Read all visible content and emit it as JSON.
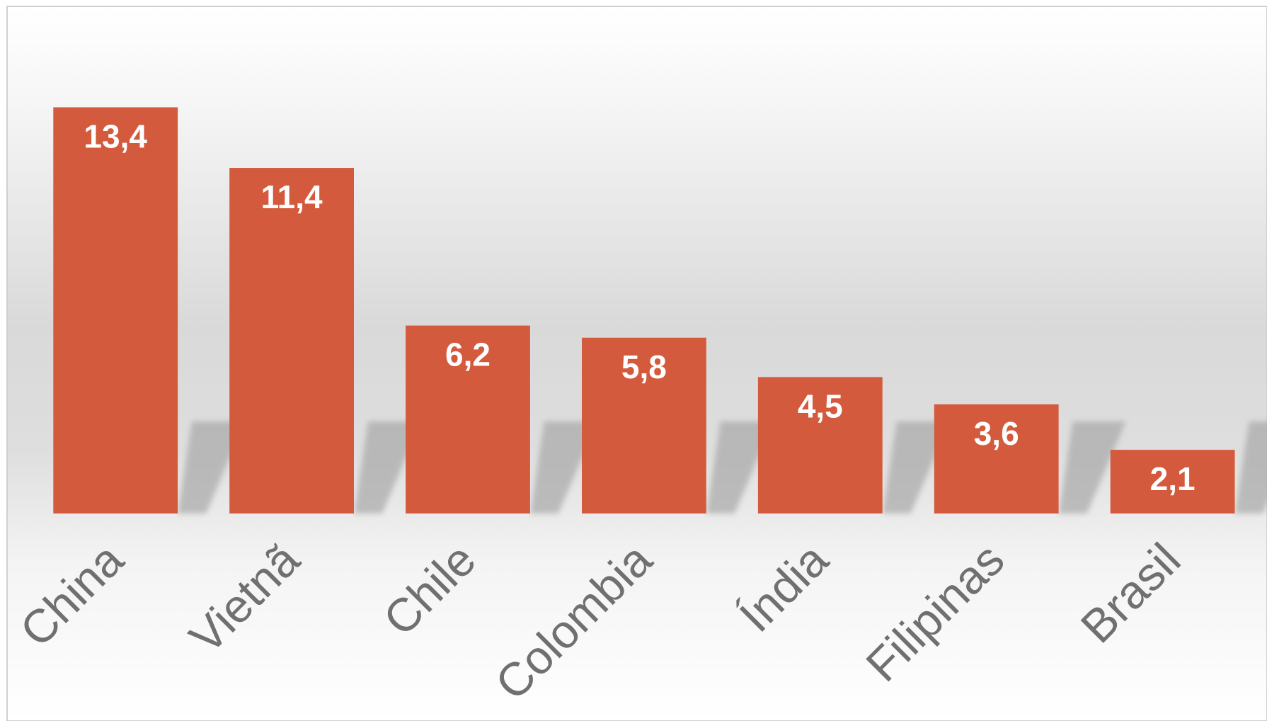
{
  "chart_data": {
    "type": "bar",
    "categories": [
      "China",
      "Vietnã",
      "Chile",
      "Colombia",
      "Índia",
      "Filipinas",
      "Brasil"
    ],
    "values": [
      13.4,
      11.4,
      6.2,
      5.8,
      4.5,
      3.6,
      2.1
    ],
    "value_labels": [
      "13,4",
      "11,4",
      "6,2",
      "5,8",
      "4,5",
      "3,6",
      "2,1"
    ],
    "color": "#d35a3c"
  }
}
